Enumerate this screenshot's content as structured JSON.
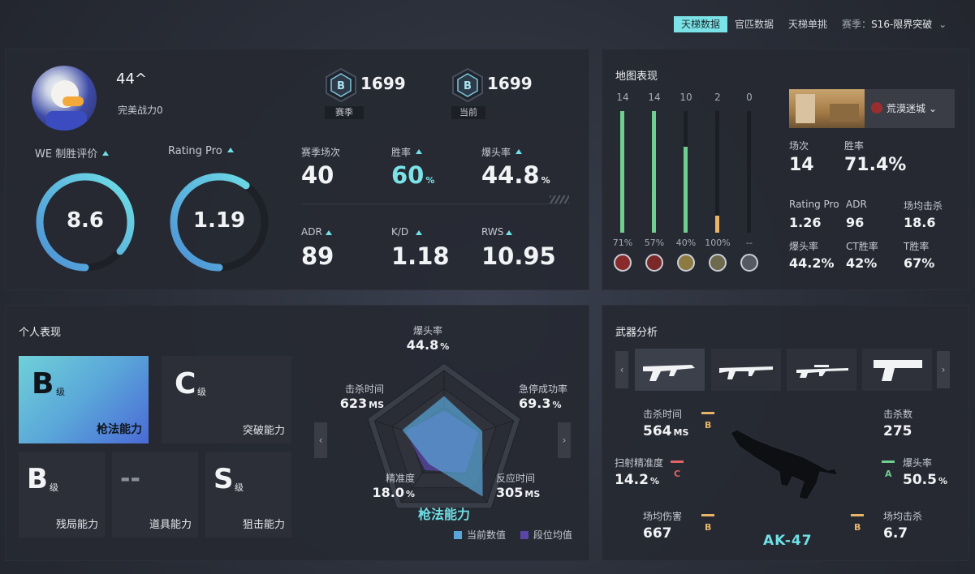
{
  "tabs": [
    {
      "label": "天梯数据",
      "active": true
    },
    {
      "label": "官匹数据",
      "active": false
    },
    {
      "label": "天梯单挑",
      "active": false
    }
  ],
  "season": {
    "prefix": "赛季：",
    "value": "S16-限界突破"
  },
  "profile": {
    "name": "44^",
    "power_label": "完美战力",
    "power_value": "0",
    "rank1": {
      "score": "1699",
      "label": "赛季",
      "letter": "B"
    },
    "rank2": {
      "score": "1699",
      "label": "当前",
      "letter": "B"
    },
    "we_label": "WE 制胜评价",
    "we_value": "8.6",
    "we_fraction": 0.86,
    "rating_label": "Rating Pro",
    "rating_value": "1.19",
    "rating_fraction": 0.6,
    "stats": [
      {
        "label": "赛季场次",
        "value": "40",
        "unit": "",
        "arrow": false
      },
      {
        "label": "胜率",
        "value": "60",
        "unit": "%",
        "arrow": true,
        "highlight": true
      },
      {
        "label": "爆头率",
        "value": "44.8",
        "unit": "%",
        "arrow": true
      },
      {
        "label": "ADR",
        "value": "89",
        "unit": "",
        "arrow": true
      },
      {
        "label": "K/D",
        "value": "1.18",
        "unit": "",
        "arrow": true
      },
      {
        "label": "RWS",
        "value": "10.95",
        "unit": "",
        "arrow": true
      }
    ]
  },
  "map": {
    "title": "地图表现",
    "bars": [
      {
        "count": "14",
        "pct": "71%",
        "fill": 1.0,
        "color": "#6fcf8f"
      },
      {
        "count": "14",
        "pct": "57%",
        "fill": 1.0,
        "color": "#6fcf8f"
      },
      {
        "count": "10",
        "pct": "40%",
        "fill": 0.71,
        "color": "#6fcf8f"
      },
      {
        "count": "2",
        "pct": "100%",
        "fill": 0.14,
        "color": "#e8b466"
      },
      {
        "count": "0",
        "pct": "--",
        "fill": 0,
        "color": "#6fcf8f"
      }
    ],
    "selected_map": "荒漠迷城",
    "stats_top": [
      {
        "label": "场次",
        "value": "14"
      },
      {
        "label": "胜率",
        "value": "71.4%"
      }
    ],
    "stats_grid": [
      {
        "label": "Rating Pro",
        "value": "1.26"
      },
      {
        "label": "ADR",
        "value": "96"
      },
      {
        "label": "场均击杀",
        "value": "18.6"
      },
      {
        "label": "爆头率",
        "value": "44.2%"
      },
      {
        "label": "CT胜率",
        "value": "42%"
      },
      {
        "label": "T胜率",
        "value": "67%"
      }
    ]
  },
  "personal": {
    "title": "个人表现",
    "grades": [
      {
        "grade": "B",
        "suffix": "级",
        "name": "枪法能力"
      },
      {
        "grade": "C",
        "suffix": "级",
        "name": "突破能力"
      },
      {
        "grade": "B",
        "suffix": "级",
        "name": "残局能力"
      },
      {
        "grade": "--",
        "suffix": "",
        "name": "道具能力"
      },
      {
        "grade": "S",
        "suffix": "级",
        "name": "狙击能力"
      }
    ],
    "radar": {
      "title": "枪法能力",
      "axes": [
        {
          "label": "爆头率",
          "value": "44.8",
          "unit": "%",
          "current": 0.65,
          "avg": 0.45
        },
        {
          "label": "急停成功率",
          "value": "69.3",
          "unit": "%",
          "current": 0.55,
          "avg": 0.5
        },
        {
          "label": "反应时间",
          "value": "305",
          "unit": "MS",
          "current": 0.9,
          "avg": 0.5
        },
        {
          "label": "精准度",
          "value": "18.0",
          "unit": "%",
          "current": 0.35,
          "avg": 0.45
        },
        {
          "label": "击杀时间",
          "value": "623",
          "unit": "MS",
          "current": 0.6,
          "avg": 0.55
        }
      ],
      "legend_current": "当前数值",
      "legend_avg": "段位均值"
    }
  },
  "weapon": {
    "title": "武器分析",
    "name": "AK-47",
    "stats": [
      {
        "label": "击杀时间",
        "value": "564",
        "unit": "MS",
        "grade": "B",
        "color": "#e8b466"
      },
      {
        "label": "击杀数",
        "value": "275",
        "unit": "",
        "grade": "",
        "color": ""
      },
      {
        "label": "扫射精准度",
        "value": "14.2",
        "unit": "%",
        "grade": "C",
        "color": "#e06464"
      },
      {
        "label": "爆头率",
        "value": "50.5",
        "unit": "%",
        "grade": "A",
        "color": "#6fcf8f"
      },
      {
        "label": "场均伤害",
        "value": "667",
        "unit": "",
        "grade": "B",
        "color": "#e8b466"
      },
      {
        "label": "场均击杀",
        "value": "6.7",
        "unit": "",
        "grade": "B",
        "color": "#e8b466"
      }
    ]
  }
}
